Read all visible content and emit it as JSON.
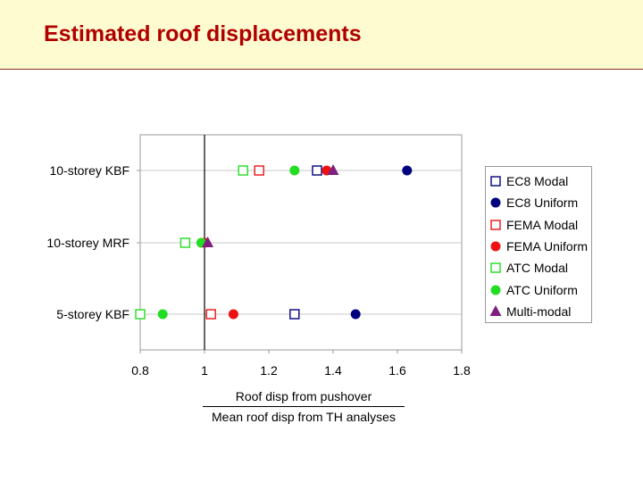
{
  "slide": {
    "title": "Estimated roof displacements"
  },
  "colors": {
    "title_text": "#b00000",
    "title_band": "#fffbd1",
    "navy": "#00007f",
    "red": "#ee1111",
    "green": "#22dd22",
    "purple": "#7f1f7f"
  },
  "chart_data": {
    "type": "scatter",
    "categories": [
      "10-storey KBF",
      "10-storey MRF",
      "5-storey KBF"
    ],
    "xlim": [
      0.8,
      1.8
    ],
    "xticks": [
      "0.8",
      "1",
      "1.2",
      "1.4",
      "1.6",
      "1.8"
    ],
    "reference_line_x": 1.0,
    "xlabel_numerator": "Roof disp from pushover",
    "xlabel_denominator": "Mean roof disp from TH analyses",
    "grid": "horizontal",
    "legend_position": "right",
    "series": [
      {
        "name": "EC8 Modal",
        "marker": "square-open",
        "color": "#00007f",
        "values": [
          1.35,
          null,
          1.28
        ]
      },
      {
        "name": "EC8 Uniform",
        "marker": "circle",
        "color": "#00007f",
        "values": [
          1.63,
          null,
          1.47
        ]
      },
      {
        "name": "FEMA Modal",
        "marker": "square-open",
        "color": "#ee1111",
        "values": [
          1.17,
          null,
          1.02
        ]
      },
      {
        "name": "FEMA Uniform",
        "marker": "circle",
        "color": "#ee1111",
        "values": [
          1.38,
          1.0,
          1.09
        ]
      },
      {
        "name": "ATC Modal",
        "marker": "square-open",
        "color": "#22dd22",
        "values": [
          1.12,
          0.94,
          0.8
        ]
      },
      {
        "name": "ATC Uniform",
        "marker": "circle",
        "color": "#22dd22",
        "values": [
          1.28,
          0.99,
          0.87
        ]
      },
      {
        "name": "Multi-modal",
        "marker": "triangle",
        "color": "#7f1f7f",
        "values": [
          1.4,
          1.01,
          null
        ]
      }
    ]
  }
}
